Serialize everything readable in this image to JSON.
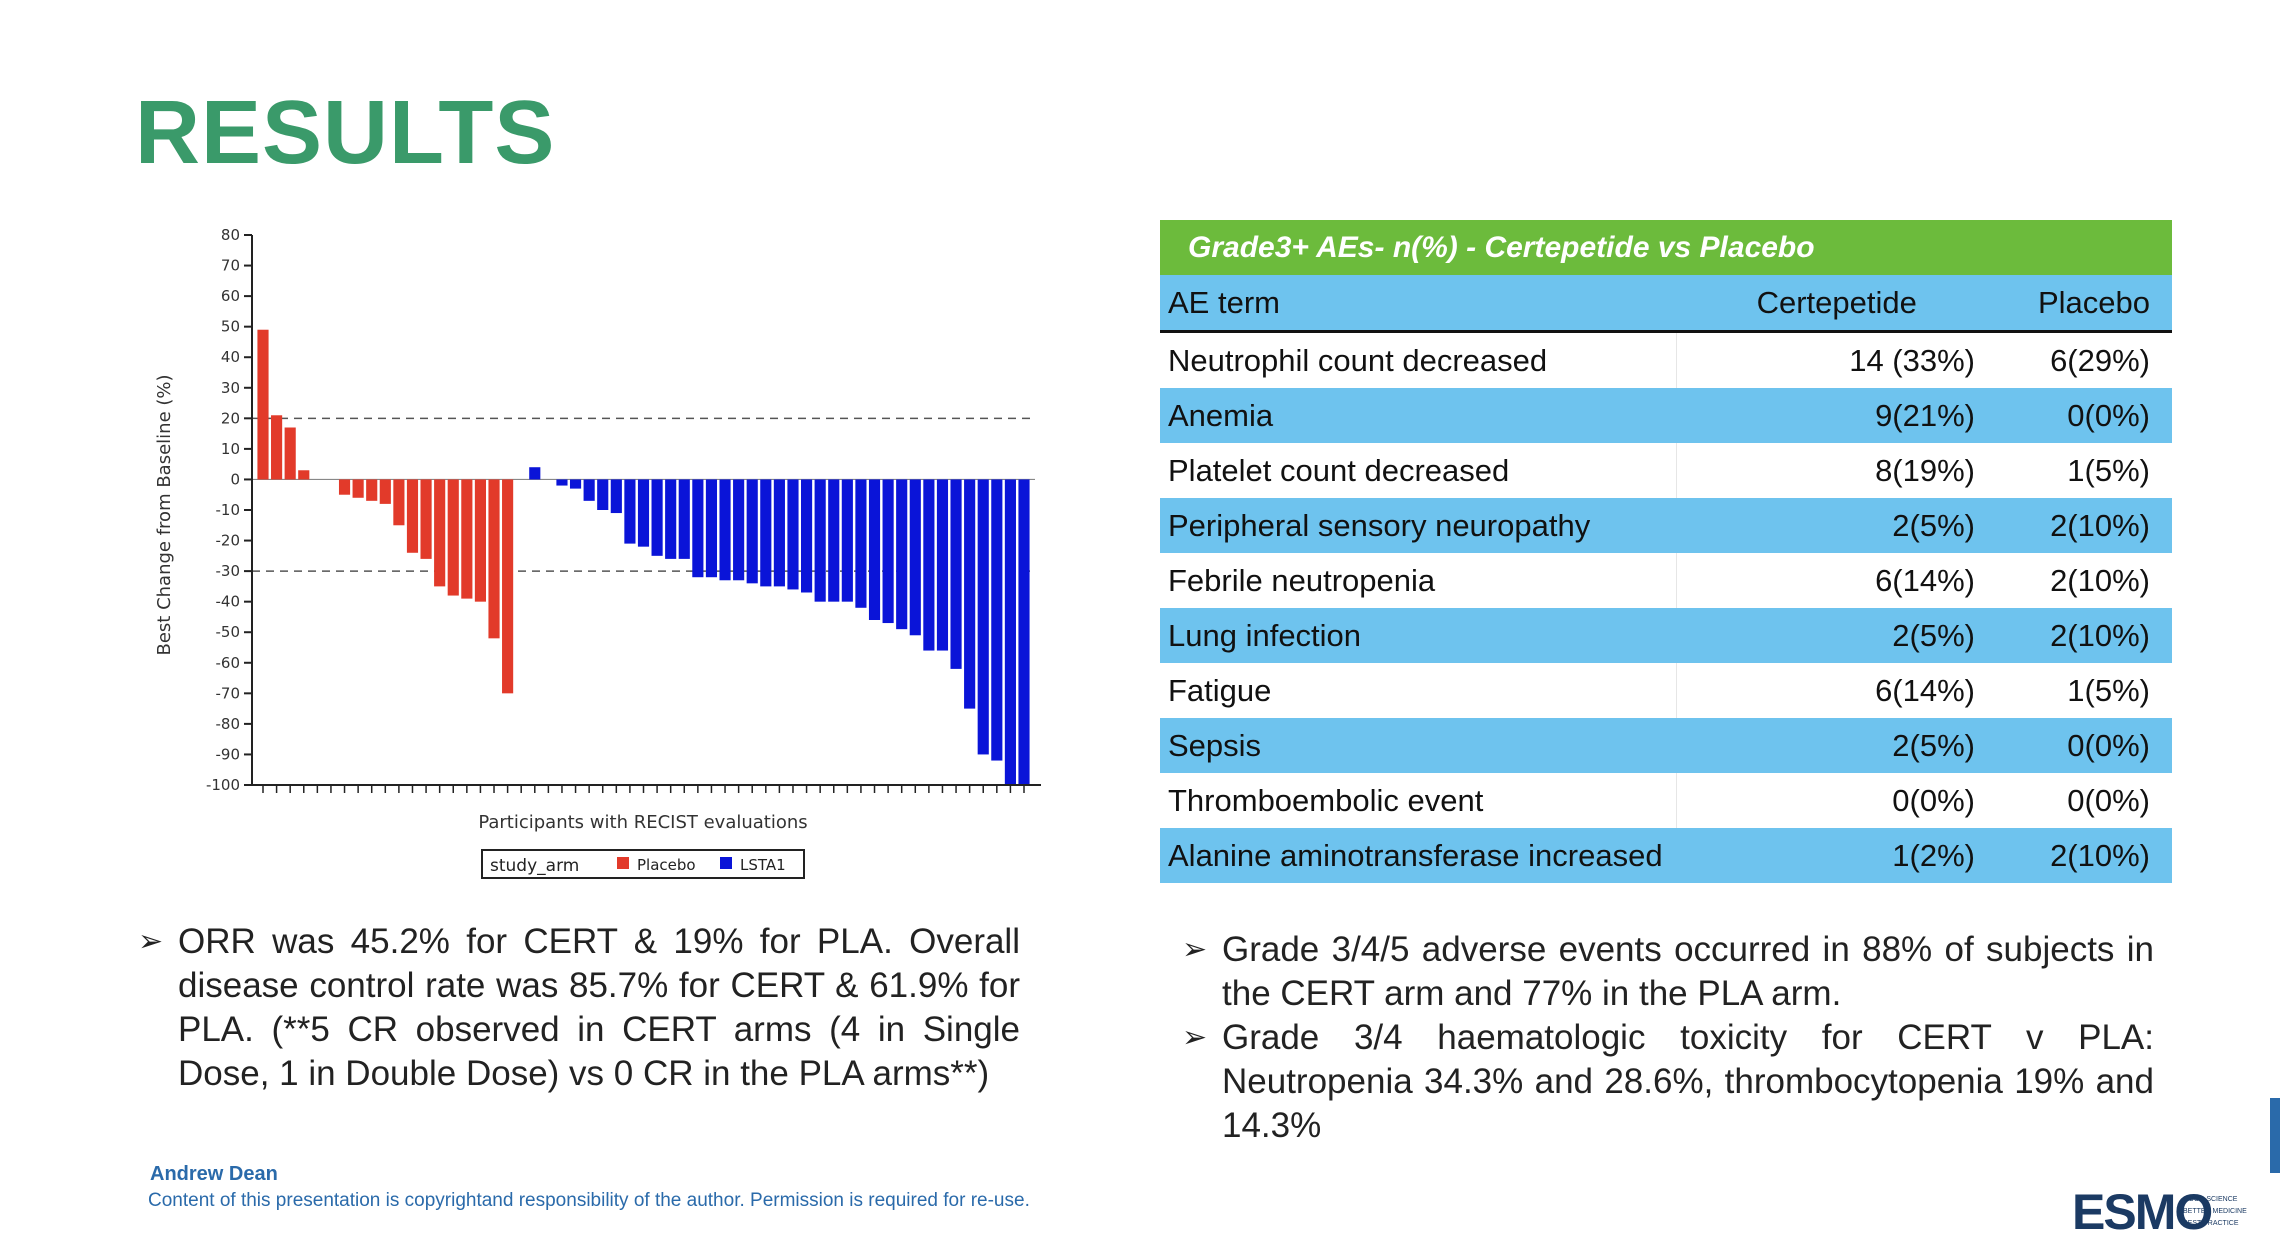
{
  "page": {
    "title": "RESULTS",
    "author": "Andrew Dean",
    "copyright": "Content of this presentation is copyrightand responsibility of the author. Permission is required for re-use.",
    "logo_text": "ESMO",
    "logo_tagline": [
      "GOOD SCIENCE",
      "BETTER MEDICINE",
      "BEST PRACTICE"
    ]
  },
  "chart_data": {
    "type": "bar",
    "ylabel": "Best Change from Baseline (%)",
    "xlabel": "Participants with RECIST evaluations",
    "ylim": [
      -100,
      80
    ],
    "yticks": [
      80,
      70,
      60,
      50,
      40,
      30,
      20,
      10,
      0,
      -10,
      -20,
      -30,
      -40,
      -50,
      -60,
      -70,
      -80,
      -90,
      -100
    ],
    "reference_lines": [
      20,
      -30
    ],
    "legend": {
      "title": "study_arm",
      "entries": [
        "Placebo",
        "LSTA1"
      ],
      "placement": "bottom-center"
    },
    "colors": {
      "Placebo": "#e23a2a",
      "LSTA1": "#0a14d8"
    },
    "bars": [
      {
        "arm": "Placebo",
        "value": 49
      },
      {
        "arm": "Placebo",
        "value": 21
      },
      {
        "arm": "Placebo",
        "value": 17
      },
      {
        "arm": "Placebo",
        "value": 3
      },
      {
        "arm": "Placebo",
        "value": 0
      },
      {
        "arm": "Placebo",
        "value": 0
      },
      {
        "arm": "Placebo",
        "value": -5
      },
      {
        "arm": "Placebo",
        "value": -6
      },
      {
        "arm": "Placebo",
        "value": -7
      },
      {
        "arm": "Placebo",
        "value": -8
      },
      {
        "arm": "Placebo",
        "value": -15
      },
      {
        "arm": "Placebo",
        "value": -24
      },
      {
        "arm": "Placebo",
        "value": -26
      },
      {
        "arm": "Placebo",
        "value": -35
      },
      {
        "arm": "Placebo",
        "value": -38
      },
      {
        "arm": "Placebo",
        "value": -39
      },
      {
        "arm": "Placebo",
        "value": -40
      },
      {
        "arm": "Placebo",
        "value": -52
      },
      {
        "arm": "Placebo",
        "value": -70
      },
      {
        "arm": "LSTA1",
        "value": 0
      },
      {
        "arm": "LSTA1",
        "value": 4
      },
      {
        "arm": "LSTA1",
        "value": 0
      },
      {
        "arm": "LSTA1",
        "value": -2
      },
      {
        "arm": "LSTA1",
        "value": -3
      },
      {
        "arm": "LSTA1",
        "value": -7
      },
      {
        "arm": "LSTA1",
        "value": -10
      },
      {
        "arm": "LSTA1",
        "value": -11
      },
      {
        "arm": "LSTA1",
        "value": -21
      },
      {
        "arm": "LSTA1",
        "value": -22
      },
      {
        "arm": "LSTA1",
        "value": -25
      },
      {
        "arm": "LSTA1",
        "value": -26
      },
      {
        "arm": "LSTA1",
        "value": -26
      },
      {
        "arm": "LSTA1",
        "value": -32
      },
      {
        "arm": "LSTA1",
        "value": -32
      },
      {
        "arm": "LSTA1",
        "value": -33
      },
      {
        "arm": "LSTA1",
        "value": -33
      },
      {
        "arm": "LSTA1",
        "value": -34
      },
      {
        "arm": "LSTA1",
        "value": -35
      },
      {
        "arm": "LSTA1",
        "value": -35
      },
      {
        "arm": "LSTA1",
        "value": -36
      },
      {
        "arm": "LSTA1",
        "value": -37
      },
      {
        "arm": "LSTA1",
        "value": -40
      },
      {
        "arm": "LSTA1",
        "value": -40
      },
      {
        "arm": "LSTA1",
        "value": -40
      },
      {
        "arm": "LSTA1",
        "value": -42
      },
      {
        "arm": "LSTA1",
        "value": -46
      },
      {
        "arm": "LSTA1",
        "value": -47
      },
      {
        "arm": "LSTA1",
        "value": -49
      },
      {
        "arm": "LSTA1",
        "value": -51
      },
      {
        "arm": "LSTA1",
        "value": -56
      },
      {
        "arm": "LSTA1",
        "value": -56
      },
      {
        "arm": "LSTA1",
        "value": -62
      },
      {
        "arm": "LSTA1",
        "value": -75
      },
      {
        "arm": "LSTA1",
        "value": -90
      },
      {
        "arm": "LSTA1",
        "value": -92
      },
      {
        "arm": "LSTA1",
        "value": -100
      },
      {
        "arm": "LSTA1",
        "value": -100
      }
    ]
  },
  "ae_table": {
    "title": "Grade3+ AEs- n(%) - Certepetide vs Placebo",
    "headers": [
      "AE term",
      "Certepetide",
      "Placebo"
    ],
    "rows": [
      {
        "term": "Neutrophil count decreased",
        "cert": "14 (33%)",
        "pla": "6(29%)"
      },
      {
        "term": "Anemia",
        "cert": "9(21%)",
        "pla": "0(0%)"
      },
      {
        "term": "Platelet count decreased",
        "cert": "8(19%)",
        "pla": "1(5%)"
      },
      {
        "term": "Peripheral sensory neuropathy",
        "cert": "2(5%)",
        "pla": "2(10%)"
      },
      {
        "term": "Febrile neutropenia",
        "cert": "6(14%)",
        "pla": "2(10%)"
      },
      {
        "term": "Lung infection",
        "cert": "2(5%)",
        "pla": "2(10%)"
      },
      {
        "term": "Fatigue",
        "cert": "6(14%)",
        "pla": "1(5%)"
      },
      {
        "term": "Sepsis",
        "cert": "2(5%)",
        "pla": "0(0%)"
      },
      {
        "term": "Thromboembolic event",
        "cert": "0(0%)",
        "pla": "0(0%)"
      },
      {
        "term": "Alanine aminotransferase increased",
        "cert": "1(2%)",
        "pla": "2(10%)"
      }
    ]
  },
  "bullets_left": [
    "ORR was 45.2% for CERT & 19% for PLA. Overall disease control rate was 85.7% for CERT & 61.9% for PLA. (**5 CR observed in CERT arms (4 in Single Dose, 1 in Double Dose) vs 0 CR in the PLA arms**)"
  ],
  "bullets_right": [
    "Grade 3/4/5 adverse events occurred in 88% of subjects in the CERT arm and 77% in the PLA arm.",
    "Grade 3/4 haematologic toxicity for CERT v PLA: Neutropenia 34.3% and 28.6%, thrombocytopenia 19% and 14.3%"
  ]
}
